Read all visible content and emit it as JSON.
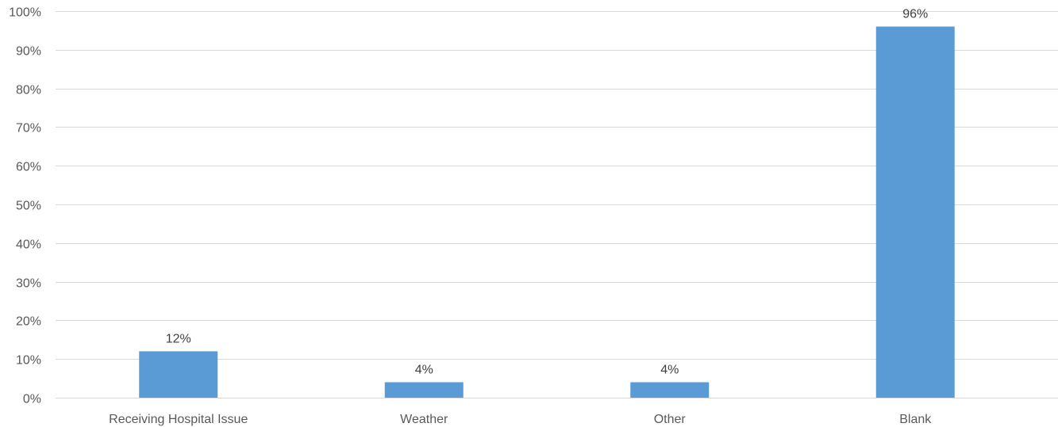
{
  "chart_data": {
    "type": "bar",
    "title": "",
    "xlabel": "",
    "ylabel": "",
    "categories": [
      "Receiving Hospital Issue",
      "Weather",
      "Other",
      "Blank"
    ],
    "values": [
      0.12,
      0.04,
      0.04,
      0.96
    ],
    "data_labels": [
      "12%",
      "4%",
      "4%",
      "96%"
    ],
    "ylim": [
      0,
      1
    ],
    "yticks": [
      0,
      0.1,
      0.2,
      0.3,
      0.4,
      0.5,
      0.6,
      0.7,
      0.8,
      0.9,
      1.0
    ],
    "ytick_labels": [
      "0%",
      "10%",
      "20%",
      "30%",
      "40%",
      "50%",
      "60%",
      "70%",
      "80%",
      "90%",
      "100%"
    ],
    "grid": true,
    "legend": "none",
    "bar_color": "#5B9BD5"
  }
}
